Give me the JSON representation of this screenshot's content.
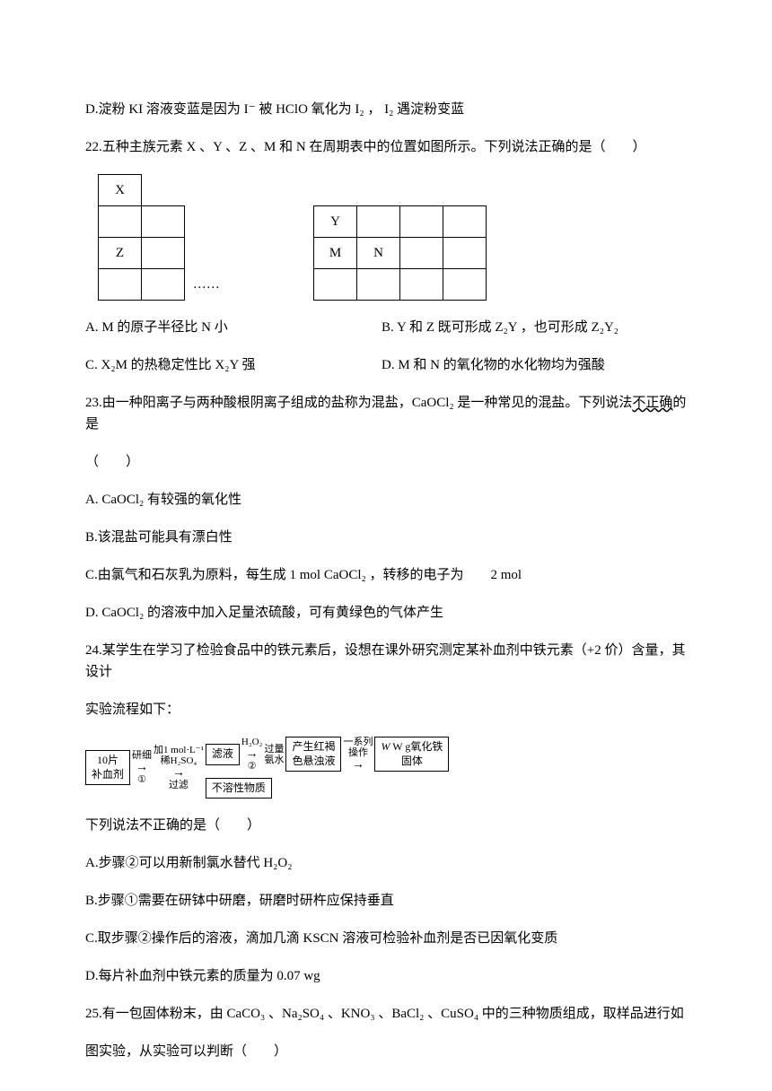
{
  "q21d": "D.淀粉 KI 溶液变蓝是因为 I⁻ 被 HClO 氧化为 I₂ ， I₂ 遇淀粉变蓝",
  "q22": {
    "stem": "22.五种主族元素 X 、Y 、Z 、M 和 N 在周期表中的位置如图所示。下列说法正确的是（　　）",
    "cells": {
      "r1c1": "X",
      "r2c6": "Y",
      "r3c1": "Z",
      "r3c6": "M",
      "r3c7": "N",
      "r4c3": "……"
    },
    "A": "A. M 的原子半径比 N 小",
    "B": "B. Y 和 Z 既可形成 Z₂Y ，也可形成 Z₂Y₂",
    "C": "C. X₂M 的热稳定性比 X₂Y 强",
    "D": "D. M 和 N 的氧化物的水化物均为强酸"
  },
  "q23": {
    "stem1": "23.由一种阳离子与两种酸根阴离子组成的盐称为混盐，CaOCl₂ 是一种常见的混盐。下列说法",
    "stem1_tail": "不正确",
    "stem1_end": "的是",
    "stem2": "（　　）",
    "A": "A. CaOCl₂ 有较强的氧化性",
    "B": "B.该混盐可能具有漂白性",
    "C": "C.由氯气和石灰乳为原料，每生成 1 mol CaOCl₂ ，转移的电子为　　2 mol",
    "D": "D. CaOCl₂ 的溶液中加入足量浓硫酸，可有黄绿色的气体产生"
  },
  "q24": {
    "stem1": "24.某学生在学习了检验食品中的铁元素后，设想在课外研究测定某补血剂中铁元素（+2 价）含量，其设计",
    "stem2": "实验流程如下：",
    "flow": {
      "box1_l1": "10片",
      "box1_l2": "补血剂",
      "a1_top": "研细",
      "a1_bot": "①",
      "a2_l1": "加1 mol·L⁻¹",
      "a2_l2": "稀H₂SO₄",
      "a2_bot": "过滤",
      "box_filtrate": "滤液",
      "box_insol": "不溶性物质",
      "a3_top": "H₂O₂",
      "a3_bot": "②",
      "a4_l1": "过量",
      "a4_l2": "氨水",
      "box_susp_l1": "产生红褐",
      "box_susp_l2": "色悬浊液",
      "a5_l1": "一系列",
      "a5_l2": "操作",
      "box_prod_l1": "W g氧化铁",
      "box_prod_l2": "固体"
    },
    "post": "下列说法不正确的是（　　）",
    "A": "A.步骤②可以用新制氯水替代 H₂O₂",
    "B": "B.步骤①需要在研钵中研磨，研磨时研杵应保持垂直",
    "C": "C.取步骤②操作后的溶液，滴加几滴 KSCN 溶液可检验补血剂是否已因氧化变质",
    "D": "D.每片补血剂中铁元素的质量为 0.07 wg"
  },
  "q25": {
    "stem1": "25.有一包固体粉末，由 CaCO₃ 、Na₂SO₄ 、KNO₃ 、BaCl₂ 、CuSO₄ 中的三种物质组成，取样品进行如",
    "stem2": "图实验，从实验可以判断（　　）"
  }
}
